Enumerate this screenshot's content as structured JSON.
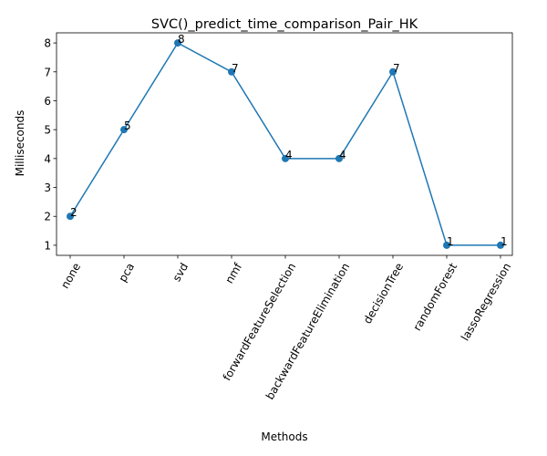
{
  "chart_data": {
    "type": "line",
    "title": "SVC()_predict_time_comparison_Pair_HK",
    "xlabel": "Methods",
    "ylabel": "Milliseconds",
    "categories": [
      "none",
      "pca",
      "svd",
      "nmf",
      "forwardFeatureSelection",
      "backwardFeatureElimination",
      "decisionTree",
      "randomForest",
      "lassoRegression"
    ],
    "series": [
      {
        "values": [
          2,
          5,
          8,
          7,
          4,
          4,
          7,
          1,
          1
        ],
        "color": "#1f77b4"
      }
    ],
    "data_labels": [
      "2",
      "5",
      "8",
      "7",
      "4",
      "4",
      "7",
      "1",
      "1"
    ],
    "yticks": [
      1,
      2,
      3,
      4,
      5,
      6,
      7,
      8
    ],
    "ylim": [
      0.65,
      8.35
    ],
    "grid": false,
    "legend": "none"
  }
}
